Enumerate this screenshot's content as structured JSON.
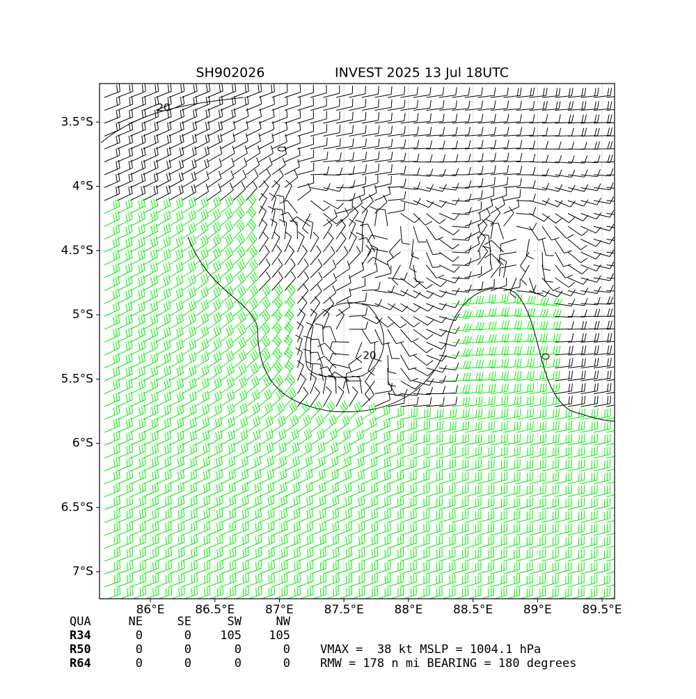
{
  "chart_data": {
    "type": "wind-barb-map",
    "title": "SH902026",
    "subtitle": "INVEST 2025 13 Jul 18UTC",
    "xlim": [
      85.606,
      89.597
    ],
    "ylim": [
      -7.21,
      -3.2
    ],
    "xticks": [
      {
        "value": 86,
        "label": "86°E"
      },
      {
        "value": 86.5,
        "label": "86.5°E"
      },
      {
        "value": 87,
        "label": "87°E"
      },
      {
        "value": 87.5,
        "label": "87.5°E"
      },
      {
        "value": 88,
        "label": "88°E"
      },
      {
        "value": 88.5,
        "label": "88.5°E"
      },
      {
        "value": 89,
        "label": "89°E"
      },
      {
        "value": 89.5,
        "label": "89.5°E"
      }
    ],
    "yticks": [
      {
        "value": -3.5,
        "label": "3.5°S"
      },
      {
        "value": -4,
        "label": "4°S"
      },
      {
        "value": -4.5,
        "label": "4.5°S"
      },
      {
        "value": -5,
        "label": "5°S"
      },
      {
        "value": -5.5,
        "label": "5.5°S"
      },
      {
        "value": -6,
        "label": "6°S"
      },
      {
        "value": -6.5,
        "label": "6.5°S"
      },
      {
        "value": -7,
        "label": "7°S"
      }
    ],
    "grid": true,
    "annotations": [
      "20",
      "20"
    ],
    "radii_table": {
      "header": [
        "QUA",
        "NE",
        "SE",
        "SW",
        "NW"
      ],
      "rows": [
        [
          "R34",
          0,
          0,
          105,
          105
        ],
        [
          "R50",
          0,
          0,
          0,
          0
        ],
        [
          "R64",
          0,
          0,
          0,
          0
        ]
      ]
    },
    "summary": [
      "VMAX =  38 kt MSLP = 1004.1 hPa",
      "RMW = 178 n mi BEARING = 180 degrees"
    ]
  }
}
